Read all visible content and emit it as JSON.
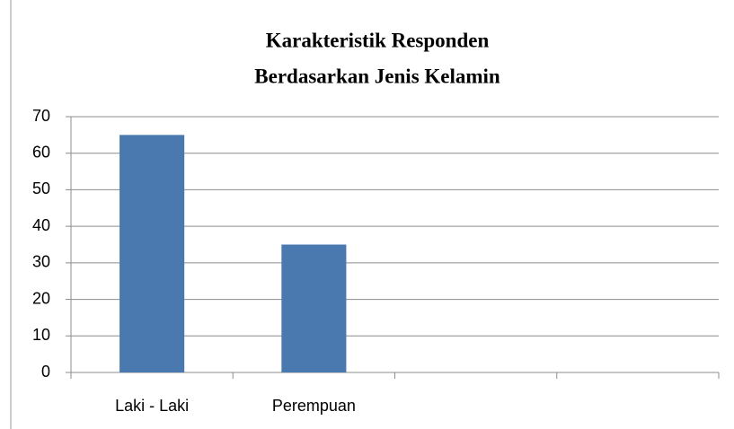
{
  "chart_data": {
    "type": "bar",
    "title": [
      "Karakteristik Responden",
      "Berdasarkan Jenis Kelamin"
    ],
    "categories": [
      "Laki - Laki",
      "Perempuan",
      null,
      null
    ],
    "values": [
      65,
      35,
      null,
      null
    ],
    "color": "#4a79b0",
    "ylim": [
      0,
      70
    ],
    "yticks": [
      0,
      10,
      20,
      30,
      40,
      50,
      60,
      70
    ],
    "grid": true
  }
}
